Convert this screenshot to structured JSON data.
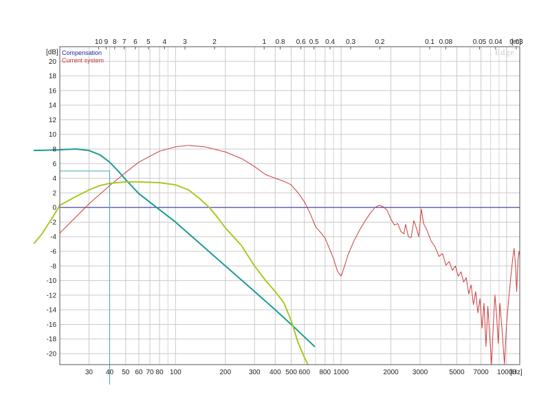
{
  "chart_data": {
    "type": "line",
    "brand_label": "Edge",
    "x_unit_label": "[Hz]",
    "y_unit_label": "[dB]",
    "top_unit_label": "[m]",
    "x_range": [
      20,
      12000
    ],
    "y_range": [
      -21.5,
      22
    ],
    "x_scale": "log",
    "grid": true,
    "legend_position": "top-left",
    "y_ticks": [
      20,
      18,
      16,
      14,
      12,
      10,
      8,
      6,
      4,
      2,
      0,
      -2,
      -4,
      -6,
      -8,
      -10,
      -12,
      -14,
      -16,
      -18,
      -20
    ],
    "y_tick_labels": [
      "20",
      "18",
      "16",
      "14",
      "12",
      "10",
      "8",
      "6",
      "4",
      "2",
      "0",
      "-2",
      "-4",
      "-6",
      "-8",
      "-10",
      "-12",
      "-14",
      "-16",
      "-18",
      "-20"
    ],
    "x_ticks": [
      30,
      40,
      50,
      60,
      70,
      80,
      100,
      200,
      300,
      400,
      500,
      600,
      800,
      1000,
      2000,
      3000,
      5000,
      7000,
      10000
    ],
    "x_tick_labels": [
      "30",
      "40",
      "50",
      "60",
      "70",
      "80",
      "100",
      "200",
      "300",
      "400",
      "500",
      "600",
      "800",
      "1000",
      "2000",
      "3000",
      "5000",
      "7000",
      "10000"
    ],
    "x_minor_grid": [
      20,
      90,
      700,
      900,
      4000,
      6000,
      8000,
      9000
    ],
    "top_ticks": [
      {
        "label": "10",
        "freq": 34.3
      },
      {
        "label": "9",
        "freq": 38.1
      },
      {
        "label": "8",
        "freq": 42.9
      },
      {
        "label": "7",
        "freq": 49
      },
      {
        "label": "6",
        "freq": 57.2
      },
      {
        "label": "5",
        "freq": 68.6
      },
      {
        "label": "4",
        "freq": 85.8
      },
      {
        "label": "3",
        "freq": 114
      },
      {
        "label": "2",
        "freq": 172
      },
      {
        "label": "1",
        "freq": 343
      },
      {
        "label": "0.8",
        "freq": 429
      },
      {
        "label": "0.6",
        "freq": 572
      },
      {
        "label": "0.5",
        "freq": 686
      },
      {
        "label": "0.4",
        "freq": 858
      },
      {
        "label": "0.3",
        "freq": 1143
      },
      {
        "label": "0.2",
        "freq": 1715
      },
      {
        "label": "0.1",
        "freq": 3430
      },
      {
        "label": "0.08",
        "freq": 4288
      },
      {
        "label": "0.05",
        "freq": 6860
      },
      {
        "label": "0.04",
        "freq": 8575
      },
      {
        "label": "0.03",
        "freq": 11433
      }
    ],
    "marker": {
      "freq": 40,
      "db": 5
    },
    "series": [
      {
        "name": "Compensation",
        "color": "#1f1fa0",
        "width": 1,
        "points": [
          [
            20,
            0
          ],
          [
            12000,
            0
          ]
        ]
      },
      {
        "name": "Current system",
        "color": "#cc3a3a",
        "width": 1,
        "points": [
          [
            20,
            -3.5
          ],
          [
            30,
            0.5
          ],
          [
            40,
            3
          ],
          [
            50,
            4.8
          ],
          [
            60,
            6.2
          ],
          [
            80,
            7.7
          ],
          [
            100,
            8.3
          ],
          [
            120,
            8.5
          ],
          [
            150,
            8.3
          ],
          [
            200,
            7.6
          ],
          [
            250,
            6.7
          ],
          [
            300,
            5.6
          ],
          [
            350,
            4.5
          ],
          [
            400,
            4.0
          ],
          [
            450,
            3.6
          ],
          [
            500,
            3.1
          ],
          [
            550,
            2.0
          ],
          [
            600,
            0.8
          ],
          [
            650,
            -0.8
          ],
          [
            700,
            -2.6
          ],
          [
            750,
            -3.4
          ],
          [
            800,
            -4.2
          ],
          [
            850,
            -5.6
          ],
          [
            900,
            -7.0
          ],
          [
            950,
            -8.7
          ],
          [
            1000,
            -9.4
          ],
          [
            1050,
            -8.0
          ],
          [
            1100,
            -6.5
          ],
          [
            1200,
            -4.5
          ],
          [
            1300,
            -3.0
          ],
          [
            1400,
            -1.8
          ],
          [
            1500,
            -0.8
          ],
          [
            1600,
            0.0
          ],
          [
            1700,
            0.3
          ],
          [
            1800,
            0.1
          ],
          [
            1900,
            -0.4
          ],
          [
            2000,
            -1.6
          ],
          [
            2100,
            -2.4
          ],
          [
            2200,
            -2.2
          ],
          [
            2300,
            -3.3
          ],
          [
            2400,
            -3.6
          ],
          [
            2450,
            -2.3
          ],
          [
            2550,
            -4.0
          ],
          [
            2650,
            -4.1
          ],
          [
            2700,
            -3.0
          ],
          [
            2750,
            -1.8
          ],
          [
            2850,
            -2.8
          ],
          [
            2950,
            -4.0
          ],
          [
            3050,
            -0.2
          ],
          [
            3150,
            -2.2
          ],
          [
            3300,
            -3.1
          ],
          [
            3500,
            -4.6
          ],
          [
            3700,
            -5.4
          ],
          [
            3900,
            -6.7
          ],
          [
            4100,
            -6.3
          ],
          [
            4300,
            -7.9
          ],
          [
            4500,
            -7.4
          ],
          [
            4700,
            -8.6
          ],
          [
            4900,
            -8.0
          ],
          [
            5100,
            -9.4
          ],
          [
            5300,
            -8.8
          ],
          [
            5500,
            -10.2
          ],
          [
            5700,
            -9.6
          ],
          [
            5900,
            -11.8
          ],
          [
            6100,
            -10.6
          ],
          [
            6300,
            -13.3
          ],
          [
            6500,
            -11.5
          ],
          [
            6700,
            -14.4
          ],
          [
            6900,
            -12.5
          ],
          [
            7100,
            -16.5
          ],
          [
            7300,
            -13.1
          ],
          [
            7500,
            -19.0
          ],
          [
            7700,
            -13.5
          ],
          [
            7900,
            -17.5
          ],
          [
            8100,
            -21.5
          ],
          [
            8300,
            -16.2
          ],
          [
            8500,
            -12.0
          ],
          [
            8700,
            -14.8
          ],
          [
            8900,
            -18.6
          ],
          [
            9100,
            -13.1
          ],
          [
            9400,
            -17.0
          ],
          [
            9700,
            -21.4
          ],
          [
            10000,
            -15.8
          ],
          [
            10300,
            -12.4
          ],
          [
            10600,
            -9.5
          ],
          [
            10900,
            -6.8
          ],
          [
            11100,
            -5.6
          ],
          [
            11300,
            -7.8
          ],
          [
            11500,
            -11.5
          ],
          [
            11700,
            -7.2
          ],
          [
            11900,
            -6.0
          ],
          [
            12000,
            -6.5
          ]
        ]
      },
      {
        "name": "",
        "color": "#1a9a92",
        "width": 2,
        "points": [
          [
            20,
            7.9
          ],
          [
            25,
            8.0
          ],
          [
            30,
            7.8
          ],
          [
            35,
            7.2
          ],
          [
            40,
            6.2
          ],
          [
            45,
            5.0
          ],
          [
            50,
            3.8
          ],
          [
            60,
            1.9
          ],
          [
            80,
            -0.3
          ],
          [
            100,
            -2.0
          ],
          [
            150,
            -5.5
          ],
          [
            200,
            -8.0
          ],
          [
            300,
            -11.5
          ],
          [
            400,
            -14.0
          ],
          [
            500,
            -16.0
          ],
          [
            600,
            -17.7
          ],
          [
            690,
            -19.0
          ]
        ]
      },
      {
        "name": "",
        "color": "#a8c820",
        "width": 2,
        "points": [
          [
            20,
            0.3
          ],
          [
            25,
            1.5
          ],
          [
            30,
            2.4
          ],
          [
            35,
            3.0
          ],
          [
            40,
            3.3
          ],
          [
            50,
            3.5
          ],
          [
            60,
            3.5
          ],
          [
            80,
            3.4
          ],
          [
            100,
            3.1
          ],
          [
            120,
            2.4
          ],
          [
            140,
            1.2
          ],
          [
            160,
            0.0
          ],
          [
            180,
            -1.4
          ],
          [
            200,
            -2.8
          ],
          [
            250,
            -5.2
          ],
          [
            300,
            -8.0
          ],
          [
            350,
            -10.0
          ],
          [
            400,
            -11.5
          ],
          [
            450,
            -13.0
          ],
          [
            500,
            -15.5
          ],
          [
            550,
            -18.5
          ],
          [
            600,
            -20.5
          ],
          [
            630,
            -21.5
          ]
        ]
      },
      {
        "name": "",
        "color": "#a8c820",
        "width": 2,
        "points": [
          [
            14,
            -4.9
          ],
          [
            15.5,
            -3.7
          ],
          [
            17,
            -2.3
          ],
          [
            18.5,
            -1.0
          ],
          [
            20,
            0.3
          ]
        ]
      },
      {
        "name": "",
        "color": "#1a9a92",
        "width": 2,
        "points": [
          [
            14,
            7.8
          ],
          [
            17,
            7.85
          ],
          [
            20,
            7.9
          ]
        ]
      }
    ]
  }
}
